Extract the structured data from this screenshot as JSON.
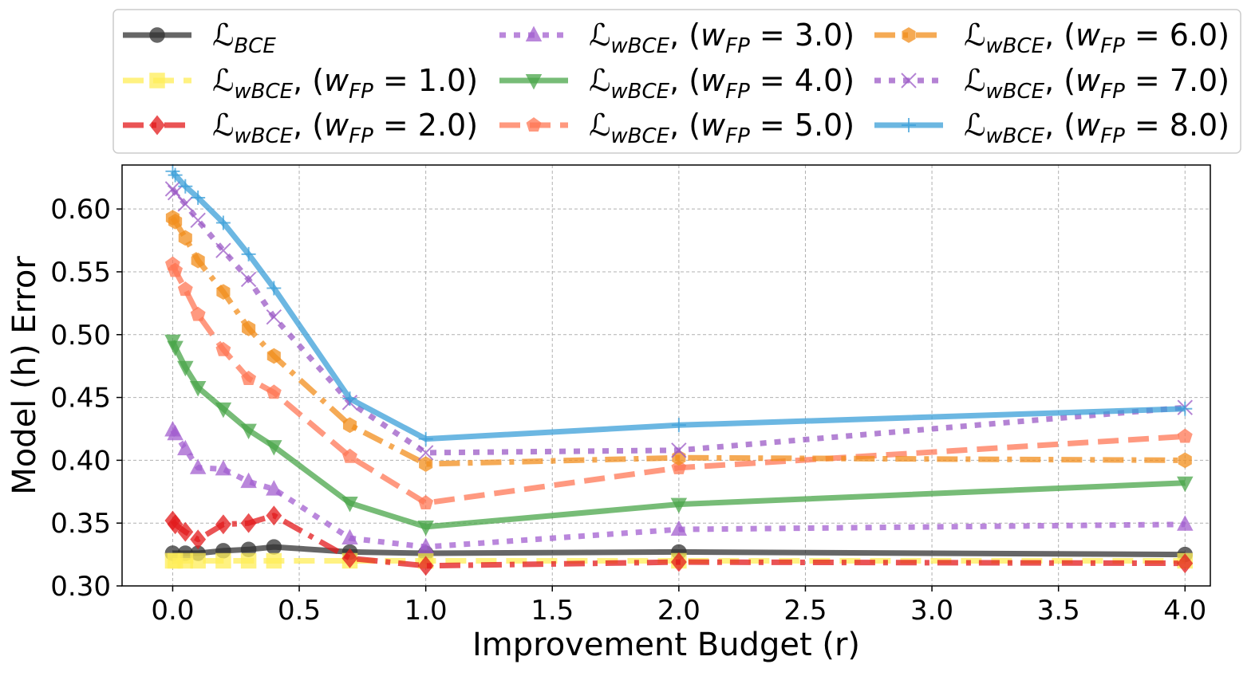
{
  "chart_data": {
    "type": "line",
    "xlabel": "Improvement Budget (r)",
    "ylabel": "Model (h) Error",
    "xlim": [
      -0.2,
      4.1
    ],
    "ylim": [
      0.3,
      0.635
    ],
    "x_ticks": [
      0.0,
      0.5,
      1.0,
      1.5,
      2.0,
      2.5,
      3.0,
      3.5,
      4.0
    ],
    "x_tick_labels": [
      "0.0",
      "0.5",
      "1.0",
      "1.5",
      "2.0",
      "2.5",
      "3.0",
      "3.5",
      "4.0"
    ],
    "y_ticks": [
      0.3,
      0.35,
      0.4,
      0.45,
      0.5,
      0.55,
      0.6
    ],
    "y_tick_labels": [
      "0.30",
      "0.35",
      "0.40",
      "0.45",
      "0.50",
      "0.55",
      "0.60"
    ],
    "grid": true,
    "legend_position": "top, outside plot, 3 columns",
    "series": [
      {
        "name": "ℒBCE",
        "label_main": "ℒ",
        "label_sub": "BCE",
        "label_w": "",
        "color": "#333333",
        "dash": "solid",
        "marker": "circle",
        "x": [
          0.0,
          0.05,
          0.1,
          0.2,
          0.3,
          0.4,
          0.7,
          1.0,
          2.0,
          4.0
        ],
        "y": [
          0.326,
          0.326,
          0.326,
          0.328,
          0.329,
          0.331,
          0.327,
          0.326,
          0.327,
          0.325
        ]
      },
      {
        "name": "ℒwBCE, (wFP = 1.0)",
        "label_main": "ℒ",
        "label_sub": "wBCE",
        "label_w": "1.0",
        "color": "#ffee58",
        "dash": "dashed",
        "marker": "square",
        "x": [
          0.0,
          0.01,
          0.05,
          0.1,
          0.2,
          0.3,
          0.4,
          0.7,
          1.0,
          2.0,
          4.0
        ],
        "y": [
          0.32,
          0.32,
          0.32,
          0.32,
          0.32,
          0.32,
          0.32,
          0.32,
          0.32,
          0.32,
          0.32
        ]
      },
      {
        "name": "ℒwBCE, (wFP = 2.0)",
        "label_main": "ℒ",
        "label_sub": "wBCE",
        "label_w": "2.0",
        "color": "#e31a1c",
        "dash": "dashdot",
        "marker": "diamond",
        "x": [
          0.0,
          0.01,
          0.05,
          0.1,
          0.2,
          0.3,
          0.4,
          0.7,
          1.0,
          2.0,
          4.0
        ],
        "y": [
          0.352,
          0.349,
          0.343,
          0.337,
          0.349,
          0.35,
          0.356,
          0.322,
          0.316,
          0.319,
          0.318
        ]
      },
      {
        "name": "ℒwBCE, (wFP = 3.0)",
        "label_main": "ℒ",
        "label_sub": "wBCE",
        "label_w": "3.0",
        "color": "#a35fd0",
        "dash": "dotted",
        "marker": "triangle-up",
        "x": [
          0.0,
          0.01,
          0.05,
          0.1,
          0.2,
          0.3,
          0.4,
          0.7,
          1.0,
          2.0,
          4.0
        ],
        "y": [
          0.424,
          0.421,
          0.409,
          0.394,
          0.393,
          0.383,
          0.377,
          0.338,
          0.331,
          0.345,
          0.349
        ]
      },
      {
        "name": "ℒwBCE, (wFP = 4.0)",
        "label_main": "ℒ",
        "label_sub": "wBCE",
        "label_w": "4.0",
        "color": "#4aa64a",
        "dash": "solid",
        "marker": "triangle-down",
        "x": [
          0.0,
          0.01,
          0.05,
          0.1,
          0.2,
          0.3,
          0.4,
          0.7,
          1.0,
          2.0,
          4.0
        ],
        "y": [
          0.495,
          0.49,
          0.474,
          0.458,
          0.441,
          0.424,
          0.411,
          0.366,
          0.347,
          0.365,
          0.382
        ]
      },
      {
        "name": "ℒwBCE, (wFP = 5.0)",
        "label_main": "ℒ",
        "label_sub": "wBCE",
        "label_w": "5.0",
        "color": "#ff7755",
        "dash": "dashed",
        "marker": "pentagon",
        "x": [
          0.0,
          0.01,
          0.05,
          0.1,
          0.2,
          0.3,
          0.4,
          0.7,
          1.0,
          2.0,
          4.0
        ],
        "y": [
          0.556,
          0.551,
          0.536,
          0.516,
          0.488,
          0.465,
          0.454,
          0.403,
          0.366,
          0.394,
          0.419
        ]
      },
      {
        "name": "ℒwBCE, (wFP = 6.0)",
        "label_main": "ℒ",
        "label_sub": "wBCE",
        "label_w": "6.0",
        "color": "#f28e1c",
        "dash": "dashdot",
        "marker": "hexagon",
        "x": [
          0.0,
          0.01,
          0.05,
          0.1,
          0.2,
          0.3,
          0.4,
          0.7,
          1.0,
          2.0,
          4.0
        ],
        "y": [
          0.593,
          0.59,
          0.577,
          0.559,
          0.534,
          0.505,
          0.483,
          0.428,
          0.397,
          0.402,
          0.4
        ]
      },
      {
        "name": "ℒwBCE, (wFP = 7.0)",
        "label_main": "ℒ",
        "label_sub": "wBCE",
        "label_w": "7.0",
        "color": "#9b59c6",
        "dash": "dotted",
        "marker": "x",
        "x": [
          0.0,
          0.01,
          0.05,
          0.1,
          0.2,
          0.3,
          0.4,
          0.7,
          1.0,
          2.0,
          4.0
        ],
        "y": [
          0.616,
          0.613,
          0.604,
          0.591,
          0.567,
          0.544,
          0.514,
          0.446,
          0.406,
          0.408,
          0.442
        ]
      },
      {
        "name": "ℒwBCE, (wFP = 8.0)",
        "label_main": "ℒ",
        "label_sub": "wBCE",
        "label_w": "8.0",
        "color": "#3b9fd8",
        "dash": "solid",
        "marker": "plus",
        "x": [
          0.0,
          0.01,
          0.05,
          0.1,
          0.2,
          0.3,
          0.4,
          0.7,
          1.0,
          2.0,
          4.0
        ],
        "y": [
          0.63,
          0.627,
          0.618,
          0.609,
          0.589,
          0.564,
          0.537,
          0.449,
          0.417,
          0.428,
          0.441
        ]
      }
    ]
  }
}
